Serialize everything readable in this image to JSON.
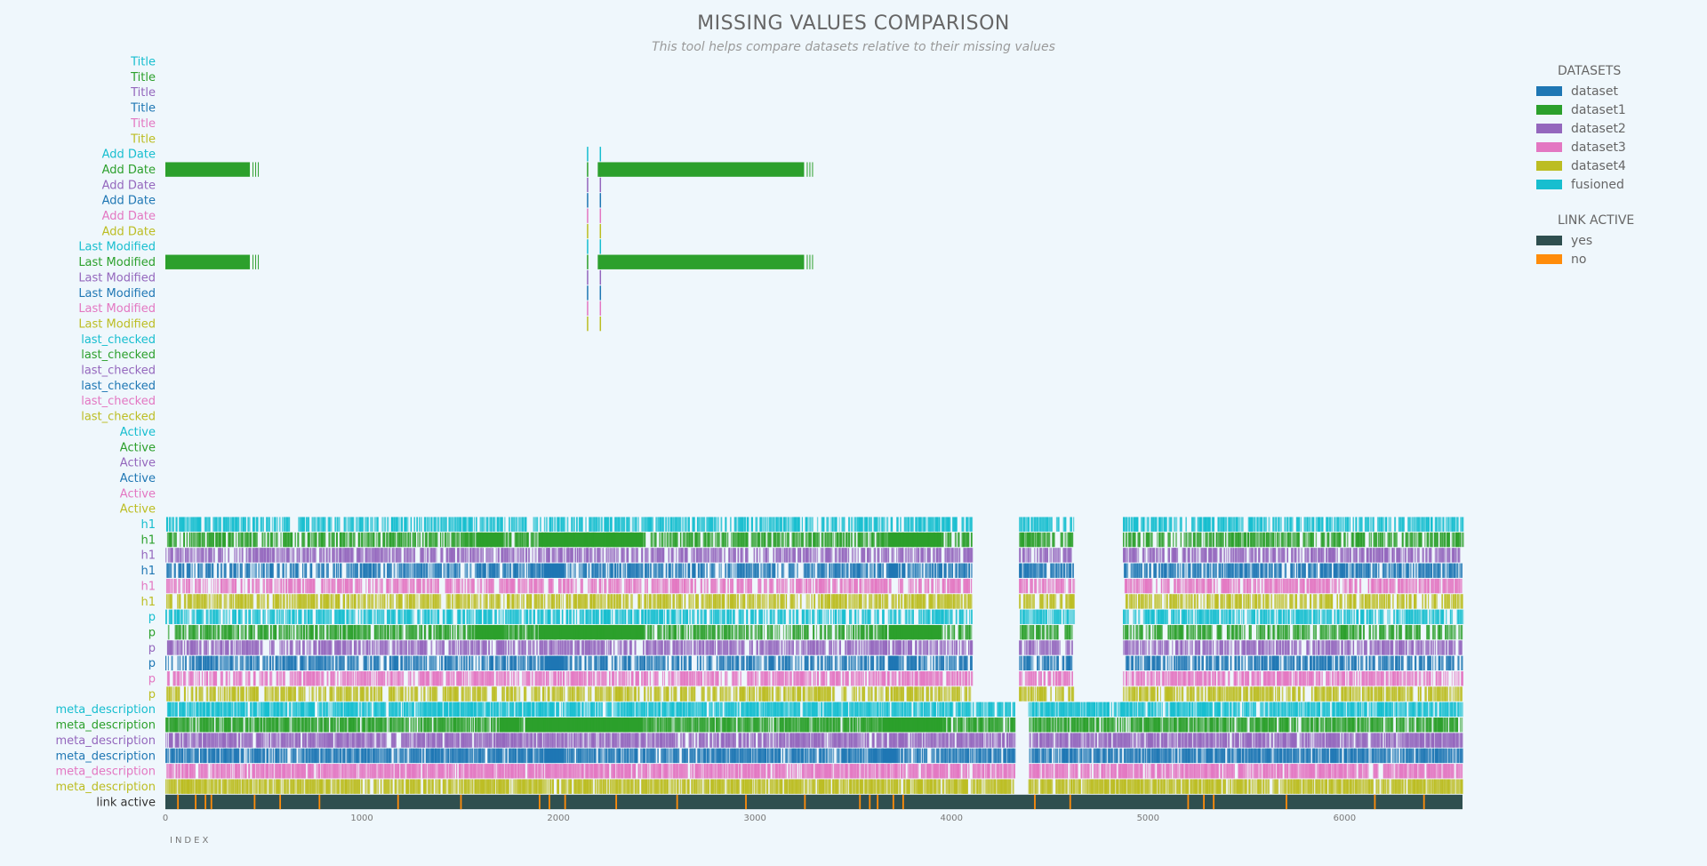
{
  "header": {
    "title": "MISSING VALUES COMPARISON",
    "subtitle": "This tool helps compare datasets relative to their missing values"
  },
  "legend": {
    "datasets_title": "DATASETS",
    "datasets": [
      {
        "label": "dataset",
        "color": "#1f77b4"
      },
      {
        "label": "dataset1",
        "color": "#2ca02c"
      },
      {
        "label": "dataset2",
        "color": "#9467bd"
      },
      {
        "label": "dataset3",
        "color": "#e377c2"
      },
      {
        "label": "dataset4",
        "color": "#bcbd22"
      },
      {
        "label": "fusioned",
        "color": "#17becf"
      }
    ],
    "link_title": "LINK ACTIVE",
    "link": [
      {
        "label": "yes",
        "color": "#2f4f4f"
      },
      {
        "label": "no",
        "color": "#ff8c0a"
      }
    ]
  },
  "chart_data": {
    "type": "heatmap",
    "xlabel": "INDEX",
    "xlim": [
      0,
      6600
    ],
    "xticks": [
      0,
      1000,
      2000,
      3000,
      4000,
      5000,
      6000
    ],
    "row_order": [
      "fusioned",
      "dataset1",
      "dataset2",
      "dataset",
      "dataset3",
      "dataset4"
    ],
    "column_groups": [
      {
        "label": "Title",
        "density": 0,
        "solid_ranges": []
      },
      {
        "label": "Add Date",
        "density": 0,
        "solid_ranges": {
          "dataset1": [
            [
              0,
              430
            ],
            [
              2200,
              3250
            ]
          ]
        },
        "ticks": [
          2145,
          2210
        ]
      },
      {
        "label": "Last Modified",
        "density": 0,
        "solid_ranges": {
          "dataset1": [
            [
              0,
              430
            ],
            [
              2200,
              3250
            ]
          ]
        },
        "ticks": [
          2145,
          2210
        ]
      },
      {
        "label": "last_checked",
        "density": 0,
        "solid_ranges": []
      },
      {
        "label": "Active",
        "density": 0,
        "solid_ranges": []
      },
      {
        "label": "h1",
        "density": 0.55,
        "solid_ranges": {
          "dataset1": [
            [
              1580,
              1720
            ],
            [
              1900,
              2430
            ],
            [
              3680,
              3950
            ]
          ],
          "dataset": [
            [
              1930,
              2030
            ],
            [
              3680,
              3730
            ]
          ]
        },
        "gaps": [
          [
            4100,
            4340
          ],
          [
            4620,
            4870
          ]
        ]
      },
      {
        "label": "p",
        "density": 0.55,
        "solid_ranges": {
          "dataset1": [
            [
              1580,
              1720
            ],
            [
              1900,
              2430
            ],
            [
              3680,
              3950
            ]
          ],
          "dataset": [
            [
              1930,
              2030
            ],
            [
              3680,
              3730
            ]
          ]
        },
        "gaps": [
          [
            4100,
            4340
          ],
          [
            4620,
            4870
          ]
        ]
      },
      {
        "label": "meta_description",
        "density": 0.75,
        "solid_ranges": {
          "dataset1": [
            [
              1700,
              1800
            ],
            [
              1830,
              2430
            ],
            [
              3650,
              3950
            ]
          ],
          "dataset": [
            [
              1930,
              2030
            ],
            [
              3650,
              3720
            ]
          ]
        },
        "gaps": [
          [
            4320,
            4390
          ]
        ]
      }
    ],
    "link_active": {
      "label": "link active",
      "base": "yes",
      "no_indices": [
        60,
        150,
        200,
        230,
        450,
        580,
        780,
        1180,
        1500,
        1900,
        1950,
        2030,
        2290,
        2600,
        2950,
        3250,
        3530,
        3580,
        3620,
        3700,
        3750,
        4420,
        4600,
        5200,
        5280,
        5330,
        5700,
        6150,
        6400
      ]
    }
  }
}
